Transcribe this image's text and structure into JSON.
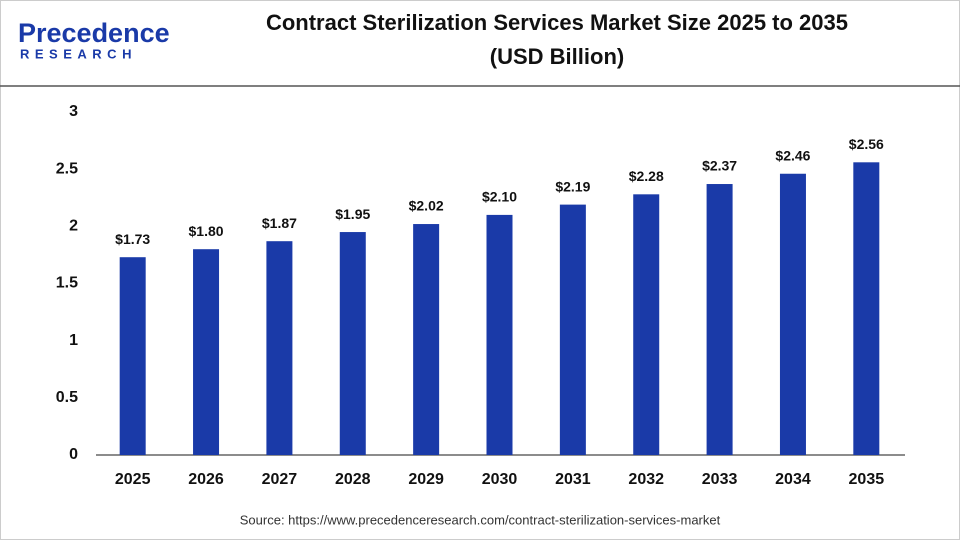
{
  "logo": {
    "name": "Precedence",
    "sub": "RESEARCH"
  },
  "chart_data": {
    "type": "bar",
    "title": "Contract Sterilization Services Market Size 2025 to 2035",
    "subtitle": "(USD Billion)",
    "categories": [
      "2025",
      "2026",
      "2027",
      "2028",
      "2029",
      "2030",
      "2031",
      "2032",
      "2033",
      "2034",
      "2035"
    ],
    "values": [
      1.73,
      1.8,
      1.87,
      1.95,
      2.02,
      2.1,
      2.19,
      2.28,
      2.37,
      2.46,
      2.56
    ],
    "value_labels": [
      "$1.73",
      "$1.80",
      "$1.87",
      "$1.95",
      "$2.02",
      "$2.10",
      "$2.19",
      "$2.28",
      "$2.37",
      "$2.46",
      "$2.56"
    ],
    "color": "#1a3aa8",
    "ylim": [
      0,
      3
    ],
    "yticks": [
      0,
      0.5,
      1,
      1.5,
      2,
      2.5,
      3
    ],
    "grid": false
  },
  "source": "Source: https://www.precedenceresearch.com/contract-sterilization-services-market"
}
